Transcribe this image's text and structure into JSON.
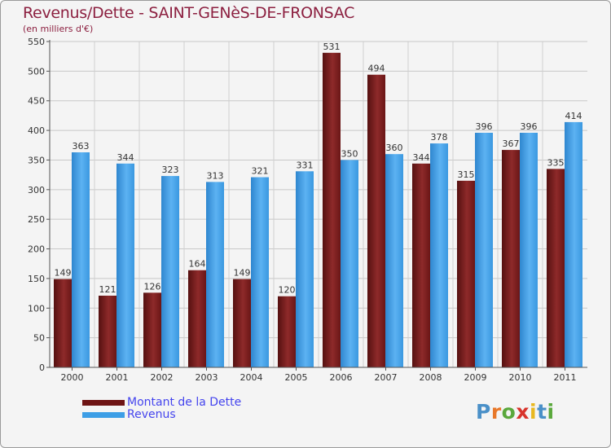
{
  "chart_data": {
    "type": "bar",
    "title": "Revenus/Dette - SAINT-GENèS-DE-FRONSAC",
    "subtitle": "(en milliers d'€)",
    "categories": [
      "2000",
      "2001",
      "2002",
      "2003",
      "2004",
      "2005",
      "2006",
      "2007",
      "2008",
      "2009",
      "2010",
      "2011"
    ],
    "series": [
      {
        "name": "Montant de la Dette",
        "color": "#6e1414",
        "values": [
          149,
          121,
          126,
          164,
          149,
          120,
          531,
          494,
          344,
          315,
          367,
          335
        ]
      },
      {
        "name": "Revenus",
        "color": "#3d9ee6",
        "values": [
          363,
          344,
          323,
          313,
          321,
          331,
          350,
          360,
          378,
          396,
          396,
          414
        ]
      }
    ],
    "ylim": [
      0,
      550
    ],
    "yticks": [
      0,
      50,
      100,
      150,
      200,
      250,
      300,
      350,
      400,
      450,
      500,
      550
    ],
    "grid": true,
    "legend": "bottom-left"
  },
  "branding": {
    "logo_letters": [
      "P",
      "r",
      "o",
      "x",
      "i",
      "t",
      "i"
    ],
    "logo_colors": [
      "#4a90c8",
      "#e8782a",
      "#5aa83c",
      "#d8342c",
      "#e8b820",
      "#4a90c8",
      "#5aa83c"
    ]
  }
}
